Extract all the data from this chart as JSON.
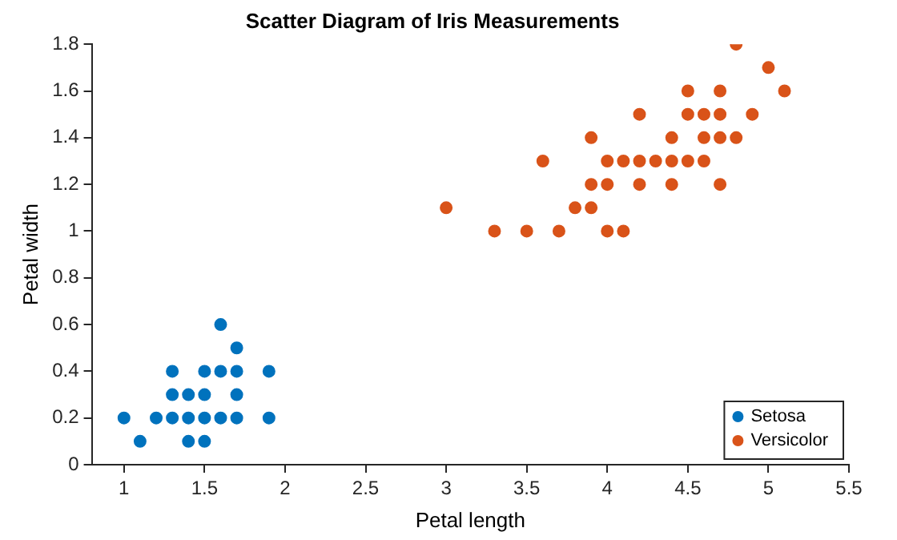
{
  "chart_data": {
    "type": "scatter",
    "title": "Scatter Diagram of Iris Measurements",
    "xlabel": "Petal length",
    "ylabel": "Petal width",
    "xlim": [
      0.8,
      5.5
    ],
    "xticks": [
      1,
      1.5,
      2,
      2.5,
      3,
      3.5,
      4,
      4.5,
      5,
      5.5
    ],
    "ylim": [
      0,
      1.8
    ],
    "yticks": [
      0,
      0.2,
      0.4,
      0.6,
      0.8,
      1,
      1.2,
      1.4,
      1.6,
      1.8
    ],
    "grid": false,
    "legend": "bottom right",
    "marker": "circle",
    "series": [
      {
        "name": "Setosa",
        "color": "#0072bd",
        "x": [
          1,
          1.1,
          1.2,
          1.3,
          1.3,
          1.3,
          1.4,
          1.4,
          1.4,
          1.5,
          1.5,
          1.5,
          1.5,
          1.6,
          1.6,
          1.6,
          1.7,
          1.7,
          1.7,
          1.7,
          1.9,
          1.9
        ],
        "values": [
          0.2,
          0.1,
          0.2,
          0.2,
          0.3,
          0.4,
          0.1,
          0.2,
          0.3,
          0.1,
          0.2,
          0.3,
          0.4,
          0.2,
          0.4,
          0.6,
          0.2,
          0.3,
          0.4,
          0.5,
          0.2,
          0.4
        ]
      },
      {
        "name": "Versicolor",
        "color": "#d95319",
        "x": [
          4.8,
          5,
          4.5,
          4.7,
          5.1,
          4.2,
          4.5,
          4.6,
          4.7,
          4.9,
          3.9,
          4.4,
          4.6,
          4.7,
          4.8,
          3.6,
          4,
          4.1,
          4.2,
          4.3,
          4.4,
          4.5,
          4.6,
          3.9,
          4,
          4.2,
          4.4,
          4.7,
          3,
          3.8,
          3.9,
          3.3,
          3.5,
          3.7,
          4,
          4.1
        ],
        "values": [
          1.8,
          1.7,
          1.6,
          1.6,
          1.6,
          1.5,
          1.5,
          1.5,
          1.5,
          1.5,
          1.4,
          1.4,
          1.4,
          1.4,
          1.4,
          1.3,
          1.3,
          1.3,
          1.3,
          1.3,
          1.3,
          1.3,
          1.3,
          1.2,
          1.2,
          1.2,
          1.2,
          1.2,
          1.1,
          1.1,
          1.1,
          1,
          1,
          1,
          1,
          1
        ]
      }
    ]
  }
}
